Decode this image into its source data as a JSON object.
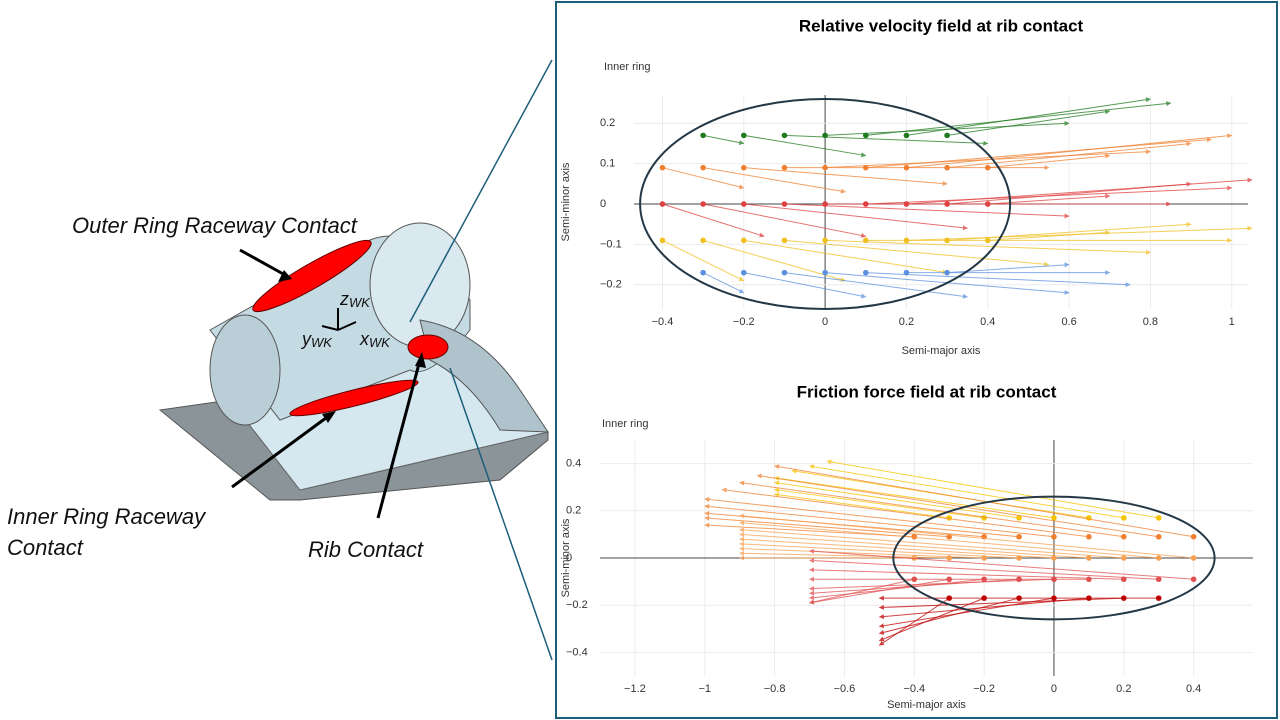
{
  "diagram": {
    "outer_label": "Outer Ring Raceway Contact",
    "inner_label": [
      "Inner Ring Raceway",
      "Contact"
    ],
    "rib_label": "Rib Contact",
    "axes": [
      {
        "base": "z",
        "sub": "WK"
      },
      {
        "base": "y",
        "sub": "WK"
      },
      {
        "base": "x",
        "sub": "WK"
      }
    ]
  },
  "chart_data": [
    {
      "type": "quiver",
      "title": "Relative velocity field at rib contact",
      "annotation": "Inner ring",
      "x_label": "Semi-major axis",
      "y_label": "Semi-minor axis",
      "xlim": [
        -0.47,
        1.04
      ],
      "ylim": [
        -0.26,
        0.27
      ],
      "xticks": [
        {
          "value": -0.4,
          "label": "−0.4"
        },
        {
          "value": -0.2,
          "label": "−0.2"
        },
        0,
        0.2,
        0.4,
        0.6,
        0.8,
        1
      ],
      "yticks": [
        {
          "value": -0.2,
          "label": "−0.2"
        },
        {
          "value": -0.1,
          "label": "−0.1"
        },
        0,
        0.1,
        0.2
      ],
      "grid": true,
      "ellipse": {
        "cx": 0,
        "cy": 0,
        "a": 0.455,
        "b": 0.26
      },
      "series": [
        {
          "color": "#1e7a1e",
          "y": 0.17,
          "x": [
            -0.3,
            -0.2,
            -0.1,
            0,
            0.1,
            0.2,
            0.3
          ],
          "u": [
            0.1,
            0.3,
            0.5,
            0.6,
            0.75,
            0.6,
            0.4
          ],
          "v": [
            -0.02,
            -0.05,
            -0.02,
            0.03,
            0.08,
            0.09,
            0.06
          ]
        },
        {
          "color": "#f08030",
          "y": 0.09,
          "x": [
            -0.4,
            -0.3,
            -0.2,
            -0.1,
            0,
            0.1,
            0.2,
            0.3,
            0.4
          ],
          "u": [
            0.2,
            0.35,
            0.5,
            0.65,
            0.8,
            0.85,
            0.8,
            0.6,
            0.3
          ],
          "v": [
            -0.05,
            -0.06,
            -0.04,
            0,
            0.04,
            0.07,
            0.08,
            0.06,
            0.03
          ]
        },
        {
          "color": "#e04040",
          "y": 0,
          "x": [
            -0.4,
            -0.3,
            -0.2,
            -0.1,
            0,
            0.1,
            0.2,
            0.3,
            0.4
          ],
          "u": [
            0.25,
            0.4,
            0.55,
            0.7,
            0.85,
            0.9,
            0.85,
            0.6,
            0.3
          ],
          "v": [
            -0.08,
            -0.08,
            -0.06,
            -0.03,
            0,
            0.04,
            0.06,
            0.05,
            0.02
          ]
        },
        {
          "color": "#f0c020",
          "y": -0.09,
          "x": [
            -0.4,
            -0.3,
            -0.2,
            -0.1,
            0,
            0.1,
            0.2,
            0.3,
            0.4
          ],
          "u": [
            0.2,
            0.35,
            0.5,
            0.65,
            0.8,
            0.9,
            0.85,
            0.6,
            0.3
          ],
          "v": [
            -0.1,
            -0.1,
            -0.08,
            -0.06,
            -0.03,
            0,
            0.03,
            0.04,
            0.02
          ]
        },
        {
          "color": "#5b8fe0",
          "y": -0.17,
          "x": [
            -0.3,
            -0.2,
            -0.1,
            0,
            0.1,
            0.2,
            0.3
          ],
          "u": [
            0.1,
            0.3,
            0.45,
            0.6,
            0.65,
            0.5,
            0.3
          ],
          "v": [
            -0.05,
            -0.06,
            -0.06,
            -0.05,
            -0.03,
            0,
            0.02
          ]
        }
      ]
    },
    {
      "type": "quiver",
      "title": "Friction force field at rib contact",
      "annotation": "Inner ring",
      "x_label": "Semi-major axis",
      "y_label": "Semi-minor axis",
      "xlim": [
        -1.3,
        0.57
      ],
      "ylim": [
        -0.5,
        0.5
      ],
      "xticks": [
        {
          "value": -1.2,
          "label": "−1.2"
        },
        {
          "value": -1,
          "label": "−1"
        },
        {
          "value": -0.8,
          "label": "−0.8"
        },
        {
          "value": -0.6,
          "label": "−0.6"
        },
        {
          "value": -0.4,
          "label": "−0.4"
        },
        {
          "value": -0.2,
          "label": "−0.2"
        },
        0,
        0.2,
        0.4
      ],
      "yticks": [
        {
          "value": -0.4,
          "label": "−0.4"
        },
        {
          "value": -0.2,
          "label": "−0.2"
        },
        0,
        0.2,
        0.4
      ],
      "grid": true,
      "ellipse": {
        "cx": 0,
        "cy": 0,
        "a": 0.46,
        "b": 0.26
      },
      "series": [
        {
          "color": "#f5c400",
          "y": 0.17,
          "x": [
            -0.3,
            -0.2,
            -0.1,
            0,
            0.1,
            0.2,
            0.3
          ],
          "u": [
            -0.5,
            -0.6,
            -0.7,
            -0.8,
            -0.85,
            -0.9,
            -0.95
          ],
          "v": [
            0.1,
            0.12,
            0.15,
            0.17,
            0.2,
            0.22,
            0.24
          ]
        },
        {
          "color": "#f08030",
          "y": 0.09,
          "x": [
            -0.4,
            -0.3,
            -0.2,
            -0.1,
            0,
            0.1,
            0.2,
            0.3,
            0.4
          ],
          "u": [
            -0.6,
            -0.7,
            -0.8,
            -0.9,
            -1.0,
            -1.05,
            -1.1,
            -1.15,
            -1.2
          ],
          "v": [
            0.05,
            0.08,
            0.1,
            0.13,
            0.16,
            0.2,
            0.23,
            0.26,
            0.3
          ]
        },
        {
          "color": "#f8a050",
          "y": 0,
          "x": [
            -0.4,
            -0.3,
            -0.2,
            -0.1,
            0,
            0.1,
            0.2,
            0.3,
            0.4
          ],
          "u": [
            -0.5,
            -0.6,
            -0.7,
            -0.8,
            -0.9,
            -1.0,
            -1.1,
            -1.2,
            -1.3
          ],
          "v": [
            0,
            0.02,
            0.04,
            0.06,
            0.08,
            0.1,
            0.12,
            0.15,
            0.18
          ]
        },
        {
          "color": "#e05050",
          "y": -0.09,
          "x": [
            -0.4,
            -0.3,
            -0.2,
            -0.1,
            0,
            0.1,
            0.2,
            0.3,
            0.4
          ],
          "u": [
            -0.3,
            -0.4,
            -0.5,
            -0.6,
            -0.7,
            -0.8,
            -0.9,
            -1.0,
            -1.1
          ],
          "v": [
            -0.1,
            -0.1,
            -0.08,
            -0.06,
            -0.04,
            0,
            0.04,
            0.08,
            0.12
          ]
        },
        {
          "color": "#c00000",
          "y": -0.17,
          "x": [
            -0.3,
            -0.2,
            -0.1,
            0,
            0.1,
            0.2,
            0.3
          ],
          "u": [
            -0.2,
            -0.3,
            -0.4,
            -0.5,
            -0.6,
            -0.7,
            -0.8
          ],
          "v": [
            -0.2,
            -0.18,
            -0.15,
            -0.12,
            -0.08,
            -0.04,
            0
          ]
        }
      ]
    }
  ]
}
